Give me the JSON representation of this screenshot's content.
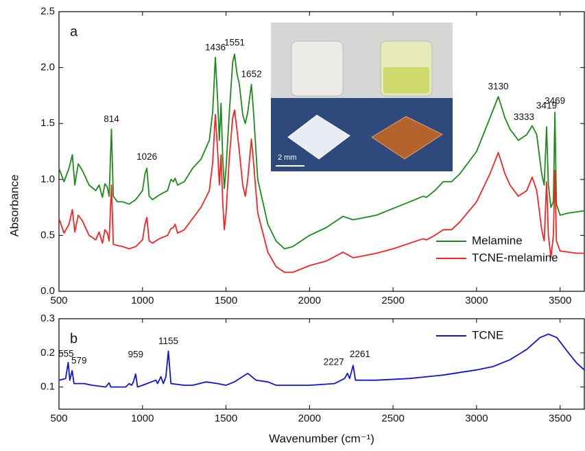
{
  "chart_data": [
    {
      "type": "line",
      "panel_label": "a",
      "ylabel": "Absorbance",
      "xlim": [
        500,
        3645
      ],
      "ylim": [
        0,
        2.5
      ],
      "xticks": [
        500,
        1000,
        1500,
        2000,
        2500,
        3000,
        3500
      ],
      "yticks": [
        {
          "value": 0,
          "label": "0.0"
        },
        0.5,
        {
          "value": 1,
          "label": "1.0"
        },
        1.5,
        {
          "value": 2,
          "label": "2.0"
        },
        2.5
      ],
      "legend": "lower right",
      "x": [
        500,
        530,
        560,
        580,
        595,
        615,
        640,
        680,
        720,
        740,
        760,
        775,
        790,
        800,
        814,
        825,
        850,
        880,
        920,
        960,
        1000,
        1015,
        1026,
        1040,
        1060,
        1100,
        1150,
        1170,
        1185,
        1195,
        1210,
        1250,
        1300,
        1350,
        1400,
        1420,
        1436,
        1450,
        1460,
        1470,
        1480,
        1490,
        1500,
        1520,
        1540,
        1551,
        1565,
        1580,
        1600,
        1615,
        1630,
        1652,
        1665,
        1690,
        1750,
        1800,
        1850,
        1900,
        2000,
        2100,
        2200,
        2260,
        2300,
        2400,
        2500,
        2600,
        2680,
        2700,
        2750,
        2800,
        2850,
        2900,
        3000,
        3080,
        3130,
        3170,
        3200,
        3250,
        3300,
        3333,
        3360,
        3390,
        3405,
        3419,
        3430,
        3445,
        3460,
        3469,
        3478,
        3500,
        3550,
        3600,
        3645
      ],
      "series": [
        {
          "name": "Melamine",
          "color": "#1a8a1a",
          "values": [
            1.1,
            0.98,
            1.1,
            1.22,
            0.95,
            1.14,
            1.08,
            0.95,
            0.9,
            0.95,
            0.84,
            0.96,
            0.93,
            0.85,
            1.45,
            0.85,
            0.8,
            0.8,
            0.78,
            0.82,
            0.9,
            1.05,
            1.1,
            0.85,
            0.82,
            0.86,
            0.9,
            1.0,
            0.98,
            1.01,
            0.95,
            0.98,
            1.1,
            1.18,
            1.35,
            1.6,
            2.09,
            1.7,
            1.35,
            1.68,
            1.2,
            0.92,
            1.1,
            1.6,
            2.05,
            2.12,
            1.95,
            1.85,
            1.58,
            1.5,
            1.6,
            1.85,
            1.6,
            1.0,
            0.6,
            0.45,
            0.38,
            0.4,
            0.5,
            0.57,
            0.67,
            0.64,
            0.65,
            0.68,
            0.74,
            0.8,
            0.85,
            0.84,
            0.9,
            0.98,
            0.98,
            1.05,
            1.25,
            1.55,
            1.74,
            1.55,
            1.45,
            1.35,
            1.4,
            1.48,
            1.4,
            1.05,
            0.95,
            1.47,
            0.95,
            0.75,
            0.8,
            1.6,
            0.78,
            0.68,
            0.7,
            0.71,
            0.72
          ]
        },
        {
          "name": "TCNE-melamine",
          "color": "#ff2020",
          "values": [
            0.65,
            0.52,
            0.6,
            0.73,
            0.53,
            0.68,
            0.63,
            0.5,
            0.46,
            0.53,
            0.43,
            0.55,
            0.52,
            0.45,
            0.95,
            0.42,
            0.41,
            0.4,
            0.38,
            0.4,
            0.46,
            0.6,
            0.66,
            0.45,
            0.43,
            0.47,
            0.5,
            0.56,
            0.57,
            0.6,
            0.52,
            0.55,
            0.65,
            0.75,
            0.9,
            1.15,
            1.58,
            1.25,
            0.95,
            1.22,
            0.8,
            0.55,
            0.7,
            1.2,
            1.55,
            1.62,
            1.45,
            1.25,
            0.95,
            0.85,
            1.0,
            1.36,
            1.15,
            0.7,
            0.35,
            0.22,
            0.17,
            0.17,
            0.23,
            0.27,
            0.35,
            0.3,
            0.31,
            0.34,
            0.38,
            0.43,
            0.47,
            0.46,
            0.5,
            0.55,
            0.55,
            0.62,
            0.8,
            1.05,
            1.24,
            1.05,
            0.95,
            0.85,
            0.9,
            1.02,
            0.9,
            0.55,
            0.45,
            0.98,
            0.5,
            0.3,
            0.5,
            1.08,
            0.45,
            0.36,
            0.35,
            0.34,
            0.34
          ]
        }
      ],
      "annotations": [
        814,
        1026,
        1436,
        1551,
        1652,
        3130,
        3333,
        3419,
        3469
      ]
    },
    {
      "type": "line",
      "panel_label": "b",
      "xlabel": "Wavenumber (cm⁻¹)",
      "xlim": [
        500,
        3645
      ],
      "ylim": [
        0.035,
        0.3
      ],
      "xticks": [
        500,
        1000,
        1500,
        2000,
        2500,
        3000,
        3500
      ],
      "yticks": [
        0.1,
        0.2,
        0.3
      ],
      "legend": "upper right",
      "x": [
        500,
        540,
        555,
        565,
        579,
        590,
        650,
        700,
        780,
        800,
        810,
        900,
        920,
        935,
        945,
        959,
        970,
        1000,
        1080,
        1090,
        1110,
        1125,
        1140,
        1155,
        1170,
        1250,
        1300,
        1380,
        1450,
        1500,
        1550,
        1630,
        1680,
        1750,
        1800,
        2000,
        2150,
        2210,
        2227,
        2240,
        2261,
        2275,
        2400,
        2600,
        2800,
        3000,
        3100,
        3200,
        3300,
        3380,
        3430,
        3480,
        3550,
        3600,
        3645
      ],
      "series": [
        {
          "name": "TCNE",
          "color": "#1010e0",
          "values": [
            0.12,
            0.125,
            0.172,
            0.12,
            0.148,
            0.11,
            0.11,
            0.105,
            0.1,
            0.112,
            0.1,
            0.1,
            0.11,
            0.105,
            0.115,
            0.138,
            0.1,
            0.105,
            0.12,
            0.11,
            0.13,
            0.11,
            0.13,
            0.205,
            0.11,
            0.105,
            0.105,
            0.115,
            0.11,
            0.105,
            0.115,
            0.14,
            0.12,
            0.115,
            0.105,
            0.105,
            0.11,
            0.125,
            0.14,
            0.125,
            0.163,
            0.12,
            0.12,
            0.125,
            0.135,
            0.15,
            0.16,
            0.18,
            0.21,
            0.245,
            0.255,
            0.245,
            0.2,
            0.17,
            0.15
          ]
        }
      ],
      "annotations": [
        555,
        579,
        959,
        1155,
        2227,
        2261
      ]
    }
  ],
  "inset": {
    "scale_label": "2 mm"
  }
}
